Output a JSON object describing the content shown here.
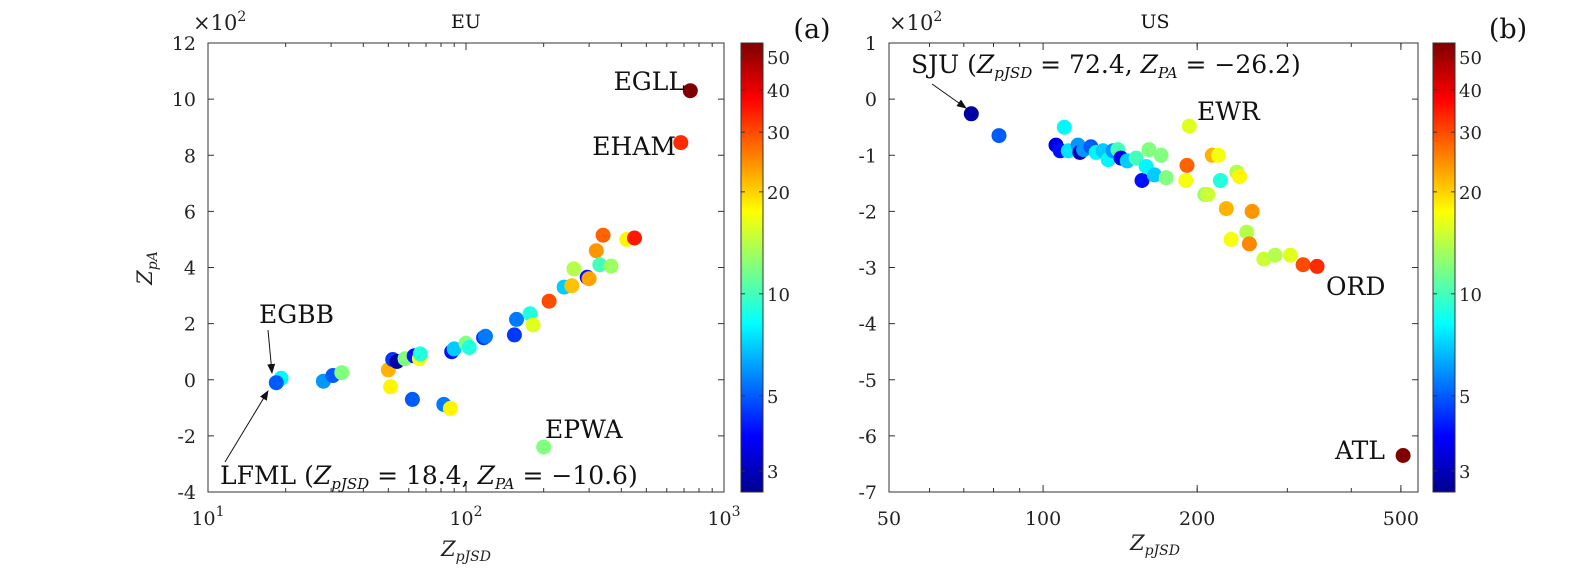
{
  "chart_data": [
    {
      "panel": "a",
      "type": "scatter",
      "title": "EU",
      "panel_label": "(a)",
      "xlabel": "Z_pJSD",
      "ylabel": "Z_pA",
      "xscale": "log",
      "xlim": [
        10,
        1000
      ],
      "ylim": [
        -4,
        12
      ],
      "y_multiplier": "×10^2",
      "xticks": [
        {
          "value": 10,
          "label": "10",
          "exp": "1"
        },
        {
          "value": 100,
          "label": "10",
          "exp": "2"
        },
        {
          "value": 1000,
          "label": "10",
          "exp": "3"
        }
      ],
      "yticks": [
        -4,
        -2,
        0,
        2,
        4,
        6,
        8,
        10,
        12
      ],
      "colorbar": {
        "scale": "log",
        "range": [
          2.6,
          55
        ],
        "ticks": [
          3,
          5,
          10,
          20,
          30,
          40,
          50
        ]
      },
      "points": [
        {
          "x": 740,
          "y": 10.3,
          "c": 55,
          "label": "EGLL"
        },
        {
          "x": 680,
          "y": 8.45,
          "c": 33,
          "label": "EHAM"
        },
        {
          "x": 200,
          "y": -2.4,
          "c": 12,
          "label": "EPWA"
        },
        {
          "x": 19.2,
          "y": 0.05,
          "c": 8
        },
        {
          "x": 18.4,
          "y": -0.106,
          "c": 5,
          "label": "LFML"
        },
        {
          "x": 28,
          "y": -0.05,
          "c": 6
        },
        {
          "x": 30.5,
          "y": 0.15,
          "c": 5
        },
        {
          "x": 33,
          "y": 0.25,
          "c": 12
        },
        {
          "x": 50,
          "y": 0.35,
          "c": 22
        },
        {
          "x": 51,
          "y": -0.25,
          "c": 18
        },
        {
          "x": 52,
          "y": 0.72,
          "c": 4.5
        },
        {
          "x": 54,
          "y": 0.65,
          "c": 2.8
        },
        {
          "x": 58,
          "y": 0.75,
          "c": 12
        },
        {
          "x": 62,
          "y": -0.7,
          "c": 5
        },
        {
          "x": 63,
          "y": 0.85,
          "c": 4
        },
        {
          "x": 66,
          "y": 0.75,
          "c": 17
        },
        {
          "x": 66.5,
          "y": 0.92,
          "c": 9
        },
        {
          "x": 82,
          "y": -0.88,
          "c": 5.5
        },
        {
          "x": 87,
          "y": -1.02,
          "c": 18
        },
        {
          "x": 88,
          "y": 1.0,
          "c": 4
        },
        {
          "x": 90,
          "y": 1.1,
          "c": 7
        },
        {
          "x": 100,
          "y": 1.3,
          "c": 12
        },
        {
          "x": 103,
          "y": 1.15,
          "c": 9
        },
        {
          "x": 117,
          "y": 1.5,
          "c": 4.5
        },
        {
          "x": 119,
          "y": 1.55,
          "c": 5.5
        },
        {
          "x": 154,
          "y": 1.6,
          "c": 4.5
        },
        {
          "x": 157,
          "y": 2.15,
          "c": 5.5
        },
        {
          "x": 177,
          "y": 2.35,
          "c": 9
        },
        {
          "x": 182,
          "y": 1.95,
          "c": 16
        },
        {
          "x": 210,
          "y": 2.8,
          "c": 30
        },
        {
          "x": 240,
          "y": 3.3,
          "c": 7
        },
        {
          "x": 257,
          "y": 3.35,
          "c": 21
        },
        {
          "x": 262,
          "y": 3.95,
          "c": 14
        },
        {
          "x": 295,
          "y": 3.65,
          "c": 4
        },
        {
          "x": 300,
          "y": 3.6,
          "c": 23
        },
        {
          "x": 320,
          "y": 4.6,
          "c": 24
        },
        {
          "x": 330,
          "y": 4.1,
          "c": 10
        },
        {
          "x": 340,
          "y": 5.15,
          "c": 28
        },
        {
          "x": 365,
          "y": 4.05,
          "c": 13
        },
        {
          "x": 420,
          "y": 5.0,
          "c": 18
        },
        {
          "x": 450,
          "y": 5.05,
          "c": 35
        }
      ],
      "annotations": [
        {
          "text": "EGLL"
        },
        {
          "text": "EHAM"
        },
        {
          "text": "EPWA"
        },
        {
          "text": "EGBB"
        },
        {
          "text": "LFML (Z_pJSD = 18.4, Z_PA = −10.6)"
        }
      ]
    },
    {
      "panel": "b",
      "type": "scatter",
      "title": "US",
      "panel_label": "(b)",
      "xlabel": "Z_pJSD",
      "ylabel": "",
      "xscale": "log",
      "xlim": [
        50,
        540
      ],
      "ylim": [
        -7,
        1
      ],
      "y_multiplier": "×10^2",
      "xticks": [
        {
          "value": 50,
          "label": "50"
        },
        {
          "value": 100,
          "label": "100"
        },
        {
          "value": 200,
          "label": "200"
        },
        {
          "value": 500,
          "label": "500"
        }
      ],
      "yticks": [
        -7,
        -6,
        -5,
        -4,
        -3,
        -2,
        -1,
        0,
        1
      ],
      "colorbar": {
        "scale": "log",
        "range": [
          2.6,
          55
        ],
        "ticks": [
          3,
          5,
          10,
          20,
          30,
          40,
          50
        ]
      },
      "points": [
        {
          "x": 72.4,
          "y": -0.262,
          "c": 2.8,
          "label": "SJU"
        },
        {
          "x": 82,
          "y": -0.65,
          "c": 5
        },
        {
          "x": 106,
          "y": -0.82,
          "c": 3.5
        },
        {
          "x": 108,
          "y": -0.92,
          "c": 4
        },
        {
          "x": 110,
          "y": -0.5,
          "c": 8
        },
        {
          "x": 112,
          "y": -0.92,
          "c": 7.5
        },
        {
          "x": 117,
          "y": -0.82,
          "c": 6
        },
        {
          "x": 118,
          "y": -0.95,
          "c": 3
        },
        {
          "x": 120,
          "y": -0.9,
          "c": 6
        },
        {
          "x": 124,
          "y": -0.85,
          "c": 5
        },
        {
          "x": 127,
          "y": -0.95,
          "c": 8
        },
        {
          "x": 131,
          "y": -0.92,
          "c": 7
        },
        {
          "x": 134,
          "y": -1.08,
          "c": 8
        },
        {
          "x": 137,
          "y": -0.92,
          "c": 6
        },
        {
          "x": 140,
          "y": -0.9,
          "c": 10
        },
        {
          "x": 142,
          "y": -1.05,
          "c": 3.5
        },
        {
          "x": 146,
          "y": -1.1,
          "c": 7
        },
        {
          "x": 152,
          "y": -1.05,
          "c": 10
        },
        {
          "x": 156,
          "y": -1.45,
          "c": 4
        },
        {
          "x": 159,
          "y": -1.2,
          "c": 8
        },
        {
          "x": 161,
          "y": -0.9,
          "c": 12
        },
        {
          "x": 165,
          "y": -1.35,
          "c": 7
        },
        {
          "x": 170,
          "y": -1.0,
          "c": 12
        },
        {
          "x": 174,
          "y": -1.4,
          "c": 12
        },
        {
          "x": 190,
          "y": -1.45,
          "c": 17
        },
        {
          "x": 193,
          "y": -0.48,
          "c": 16,
          "label": "EWR"
        },
        {
          "x": 191,
          "y": -1.18,
          "c": 28
        },
        {
          "x": 207,
          "y": -1.7,
          "c": 13
        },
        {
          "x": 210,
          "y": -1.7,
          "c": 15
        },
        {
          "x": 214,
          "y": -1.0,
          "c": 22
        },
        {
          "x": 220,
          "y": -1.0,
          "c": 17
        },
        {
          "x": 222,
          "y": -1.45,
          "c": 9
        },
        {
          "x": 228,
          "y": -1.95,
          "c": 22
        },
        {
          "x": 233,
          "y": -2.5,
          "c": 17
        },
        {
          "x": 239,
          "y": -1.3,
          "c": 14
        },
        {
          "x": 242,
          "y": -1.38,
          "c": 18
        },
        {
          "x": 250,
          "y": -2.37,
          "c": 14
        },
        {
          "x": 253,
          "y": -2.58,
          "c": 25
        },
        {
          "x": 256,
          "y": -2.0,
          "c": 24
        },
        {
          "x": 270,
          "y": -2.85,
          "c": 15
        },
        {
          "x": 284,
          "y": -2.78,
          "c": 14
        },
        {
          "x": 304,
          "y": -2.78,
          "c": 16
        },
        {
          "x": 322,
          "y": -2.95,
          "c": 30
        },
        {
          "x": 343,
          "y": -2.98,
          "c": 33,
          "label": "ORD"
        },
        {
          "x": 505,
          "y": -6.35,
          "c": 55,
          "label": "ATL"
        }
      ],
      "annotations": [
        {
          "text": "SJU (Z_pJSD = 72.4, Z_PA = −26.2)"
        },
        {
          "text": "EWR"
        },
        {
          "text": "ORD"
        },
        {
          "text": "ATL"
        }
      ]
    }
  ],
  "labels": {
    "a": {
      "title": "EU",
      "panel": "(a)",
      "mult_base": "×10",
      "mult_exp": "2",
      "xlabel_main": "Z",
      "xlabel_sub": "pJSD",
      "ylabel_main": "Z",
      "ylabel_sub": "pA",
      "egll": "EGLL",
      "eham": "EHAM",
      "epwa": "EPWA",
      "egbb": "EGBB",
      "lfml_name": "LFML (",
      "lfml_z1": "Z",
      "lfml_s1": "pJSD",
      "lfml_eq1": " = 18.4, ",
      "lfml_z2": "Z",
      "lfml_s2": "PA",
      "lfml_eq2": " = −10.6)"
    },
    "b": {
      "title": "US",
      "panel": "(b)",
      "mult_base": "×10",
      "mult_exp": "2",
      "xlabel_main": "Z",
      "xlabel_sub": "pJSD",
      "sju_name": "SJU (",
      "sju_z1": "Z",
      "sju_s1": "pJSD",
      "sju_eq1": " = 72.4, ",
      "sju_z2": "Z",
      "sju_s2": "PA",
      "sju_eq2": " = −26.2)",
      "ewr": "EWR",
      "ord": "ORD",
      "atl": "ATL"
    }
  }
}
